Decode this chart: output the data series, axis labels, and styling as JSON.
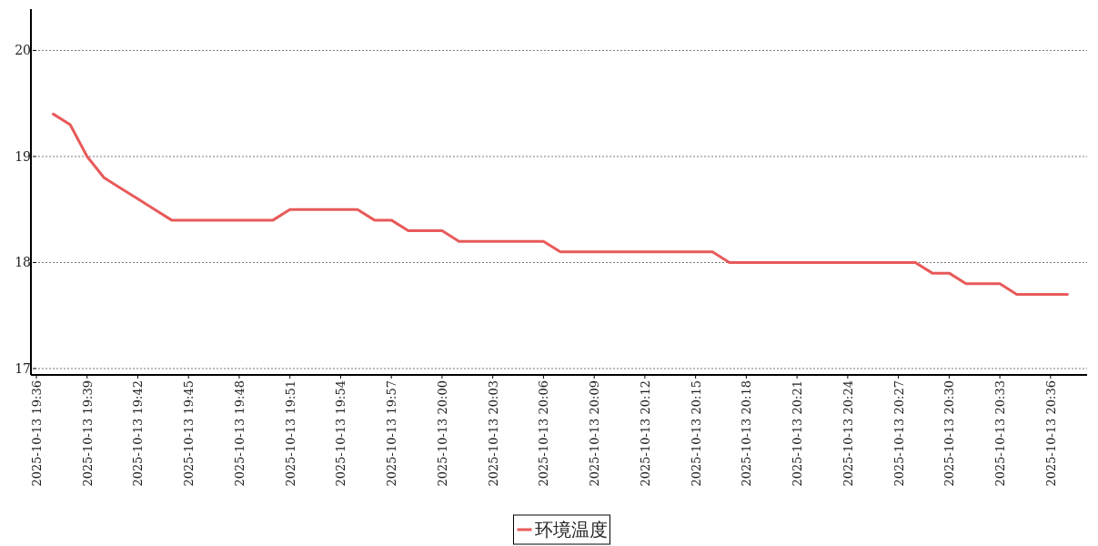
{
  "chart_data": {
    "type": "line",
    "x": [
      "2025-10-13T19:37",
      "2025-10-13T19:38",
      "2025-10-13T19:39",
      "2025-10-13T19:40",
      "2025-10-13T19:41",
      "2025-10-13T19:42",
      "2025-10-13T19:43",
      "2025-10-13T19:44",
      "2025-10-13T19:45",
      "2025-10-13T19:46",
      "2025-10-13T19:47",
      "2025-10-13T19:48",
      "2025-10-13T19:49",
      "2025-10-13T19:50",
      "2025-10-13T19:51",
      "2025-10-13T19:52",
      "2025-10-13T19:53",
      "2025-10-13T19:54",
      "2025-10-13T19:55",
      "2025-10-13T19:56",
      "2025-10-13T19:57",
      "2025-10-13T19:58",
      "2025-10-13T19:59",
      "2025-10-13T20:00",
      "2025-10-13T20:01",
      "2025-10-13T20:02",
      "2025-10-13T20:03",
      "2025-10-13T20:04",
      "2025-10-13T20:05",
      "2025-10-13T20:06",
      "2025-10-13T20:07",
      "2025-10-13T20:08",
      "2025-10-13T20:09",
      "2025-10-13T20:10",
      "2025-10-13T20:11",
      "2025-10-13T20:12",
      "2025-10-13T20:13",
      "2025-10-13T20:14",
      "2025-10-13T20:15",
      "2025-10-13T20:16",
      "2025-10-13T20:17",
      "2025-10-13T20:18",
      "2025-10-13T20:19",
      "2025-10-13T20:20",
      "2025-10-13T20:21",
      "2025-10-13T20:22",
      "2025-10-13T20:23",
      "2025-10-13T20:24",
      "2025-10-13T20:25",
      "2025-10-13T20:26",
      "2025-10-13T20:27",
      "2025-10-13T20:28",
      "2025-10-13T20:29",
      "2025-10-13T20:30",
      "2025-10-13T20:31",
      "2025-10-13T20:32",
      "2025-10-13T20:33",
      "2025-10-13T20:34",
      "2025-10-13T20:35",
      "2025-10-13T20:36",
      "2025-10-13T20:37"
    ],
    "series": [
      {
        "name": "环境温度",
        "color": "#e85a5a",
        "values": [
          19.4,
          19.3,
          19.0,
          18.8,
          18.7,
          18.6,
          18.5,
          18.4,
          18.4,
          18.4,
          18.4,
          18.4,
          18.4,
          18.4,
          18.5,
          18.5,
          18.5,
          18.5,
          18.5,
          18.4,
          18.4,
          18.3,
          18.3,
          18.3,
          18.2,
          18.2,
          18.2,
          18.2,
          18.2,
          18.2,
          18.1,
          18.1,
          18.1,
          18.1,
          18.1,
          18.1,
          18.1,
          18.1,
          18.1,
          18.1,
          18.0,
          18.0,
          18.0,
          18.0,
          18.0,
          18.0,
          18.0,
          18.0,
          18.0,
          18.0,
          18.0,
          18.0,
          17.9,
          17.9,
          17.8,
          17.8,
          17.8,
          17.7,
          17.7,
          17.7,
          17.7
        ]
      }
    ],
    "xlim": [
      "2025-10-13T19:36",
      "2025-10-13T20:38"
    ],
    "xticks": [
      {
        "value": "2025-10-13T19:36",
        "label": "2025-10-13 19:36"
      },
      {
        "value": "2025-10-13T19:39",
        "label": "2025-10-13 19:39"
      },
      {
        "value": "2025-10-13T19:42",
        "label": "2025-10-13 19:42"
      },
      {
        "value": "2025-10-13T19:45",
        "label": "2025-10-13 19:45"
      },
      {
        "value": "2025-10-13T19:48",
        "label": "2025-10-13 19:48"
      },
      {
        "value": "2025-10-13T19:51",
        "label": "2025-10-13 19:51"
      },
      {
        "value": "2025-10-13T19:54",
        "label": "2025-10-13 19:54"
      },
      {
        "value": "2025-10-13T19:57",
        "label": "2025-10-13 19:57"
      },
      {
        "value": "2025-10-13T20:00",
        "label": "2025-10-13 20:00"
      },
      {
        "value": "2025-10-13T20:03",
        "label": "2025-10-13 20:03"
      },
      {
        "value": "2025-10-13T20:06",
        "label": "2025-10-13 20:06"
      },
      {
        "value": "2025-10-13T20:09",
        "label": "2025-10-13 20:09"
      },
      {
        "value": "2025-10-13T20:12",
        "label": "2025-10-13 20:12"
      },
      {
        "value": "2025-10-13T20:15",
        "label": "2025-10-13 20:15"
      },
      {
        "value": "2025-10-13T20:18",
        "label": "2025-10-13 20:18"
      },
      {
        "value": "2025-10-13T20:21",
        "label": "2025-10-13 20:21"
      },
      {
        "value": "2025-10-13T20:24",
        "label": "2025-10-13 20:24"
      },
      {
        "value": "2025-10-13T20:27",
        "label": "2025-10-13 20:27"
      },
      {
        "value": "2025-10-13T20:30",
        "label": "2025-10-13 20:30"
      },
      {
        "value": "2025-10-13T20:33",
        "label": "2025-10-13 20:33"
      },
      {
        "value": "2025-10-13T20:36",
        "label": "2025-10-13 20:36"
      }
    ],
    "ylim": [
      16.94,
      20.39
    ],
    "yticks": [
      17,
      18,
      19,
      20
    ],
    "grid": "y",
    "legend": "bottom"
  }
}
